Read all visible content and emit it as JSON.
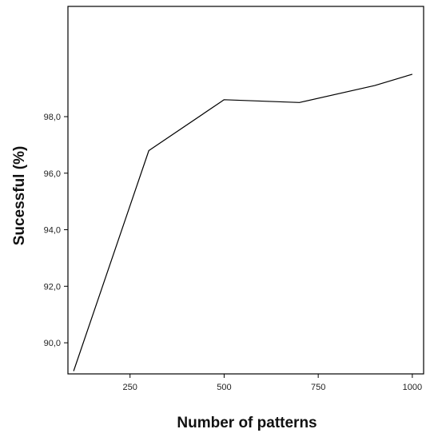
{
  "chart_data": {
    "type": "line",
    "xlabel": "Number of patterns",
    "ylabel": "Sucessful (%)",
    "xlim": [
      85,
      1030
    ],
    "ylim": [
      88.9,
      101.9
    ],
    "x_ticks": [
      {
        "value": 250,
        "label": "250"
      },
      {
        "value": 500,
        "label": "500"
      },
      {
        "value": 750,
        "label": "750"
      },
      {
        "value": 1000,
        "label": "1000"
      }
    ],
    "y_ticks": [
      {
        "value": 90,
        "label": "90,0"
      },
      {
        "value": 92,
        "label": "92,0"
      },
      {
        "value": 94,
        "label": "94,0"
      },
      {
        "value": 96,
        "label": "96,0"
      },
      {
        "value": 98,
        "label": "98,0"
      }
    ],
    "grid": false,
    "series": [
      {
        "x": [
          100,
          300,
          500,
          700,
          900,
          1000
        ],
        "y": [
          89.0,
          96.8,
          98.6,
          98.5,
          99.1,
          99.5
        ]
      }
    ],
    "colors": {
      "line": "#000000",
      "frame": "#000000",
      "background": "#ffffff"
    }
  }
}
